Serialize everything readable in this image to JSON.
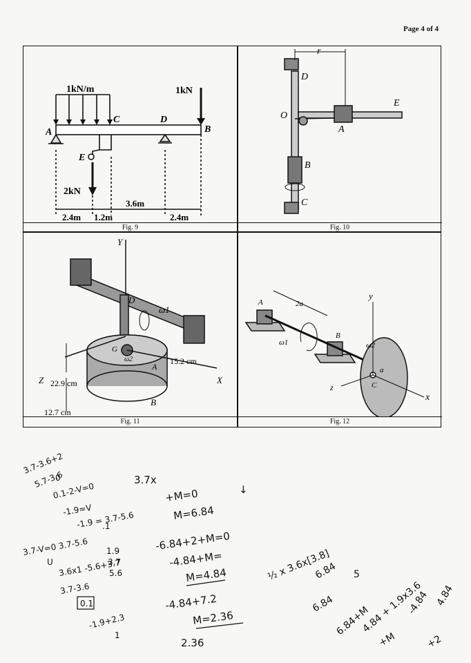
{
  "page": {
    "label": "Page 4 of 4"
  },
  "fig9": {
    "caption": "Fig. 9",
    "load_dist": "1kN/m",
    "load_point_b": "1kN",
    "load_point_e": "2kN",
    "points": [
      "A",
      "B",
      "C",
      "D",
      "E"
    ],
    "dims": [
      "2.4m",
      "1.2m",
      "3.6m",
      "2.4m"
    ]
  },
  "fig10": {
    "caption": "Fig. 10",
    "labels": [
      "r",
      "D",
      "E",
      "O",
      "A",
      "B",
      "C"
    ]
  },
  "fig11": {
    "caption": "Fig. 11",
    "labels": [
      "Y",
      "D",
      "ω1",
      "X",
      "Z",
      "G",
      "A",
      "B",
      "ω2"
    ],
    "dims": [
      "22.9 cm",
      "15.2 cm",
      "12.7 cm"
    ]
  },
  "fig12": {
    "caption": "Fig. 12",
    "labels": [
      "A",
      "2a",
      "ω1",
      "B",
      "y",
      "ω2",
      "a",
      "C",
      "z",
      "x"
    ]
  },
  "handwriting": {
    "col1": [
      "3.7-3.6+2",
      "5.7-3.6",
      "0",
      "0.1-2-V=0",
      "-1.9=V",
      "-1.9 = 3.7-5.6",
      "3.7-V=0 3.7-5.6",
      ".1",
      "U",
      "3.6x1 -5.6+3.7",
      "1.9",
      "3.7",
      "5.6",
      "3.7-3.6",
      "0.1",
      "-1.9+2.3",
      "1"
    ],
    "col2": [
      "3.7x",
      "+M=0",
      "M=6.84",
      "↓",
      "-6.84+2+M=0",
      "-4.84+M=",
      "M=4.84",
      "-4.84+7.2",
      "M=2.36",
      "2.36"
    ],
    "col3": [
      "½ x 3.6x[3.8]",
      "6.84",
      "5",
      "6.84",
      "6.84+M",
      "4.84 + 1.9x3.6",
      "-4.84",
      "4.84",
      "+M",
      "+2"
    ]
  }
}
